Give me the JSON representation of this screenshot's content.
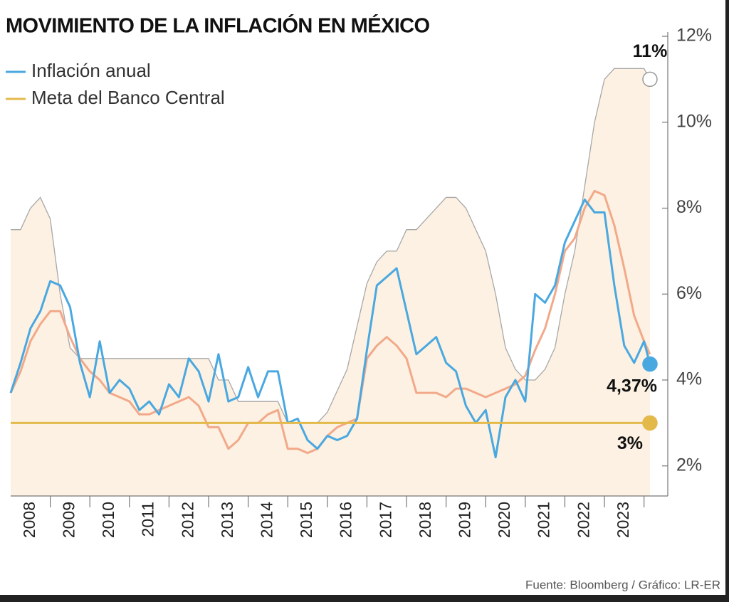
{
  "chart_data": {
    "type": "line",
    "title": "MOVIMIENTO DE LA INFLACIÓN EN MÉXICO",
    "source": "Fuente: Bloomberg / Gráfico: LR-ER",
    "legend": "top-left",
    "x": [
      2008,
      2008.25,
      2008.5,
      2008.75,
      2009,
      2009.25,
      2009.5,
      2009.75,
      2010,
      2010.25,
      2010.5,
      2010.75,
      2011,
      2011.25,
      2011.5,
      2011.75,
      2012,
      2012.25,
      2012.5,
      2012.75,
      2013,
      2013.25,
      2013.5,
      2013.75,
      2014,
      2014.25,
      2014.5,
      2014.75,
      2015,
      2015.25,
      2015.5,
      2015.75,
      2016,
      2016.25,
      2016.5,
      2016.75,
      2017,
      2017.25,
      2017.5,
      2017.75,
      2018,
      2018.25,
      2018.5,
      2018.75,
      2019,
      2019.25,
      2019.5,
      2019.75,
      2020,
      2020.25,
      2020.5,
      2020.75,
      2021,
      2021.25,
      2021.5,
      2021.75,
      2022,
      2022.25,
      2022.5,
      2022.75,
      2023,
      2023.25,
      2023.5,
      2023.75,
      2024,
      2024.15
    ],
    "xlim": [
      2008,
      2024.6
    ],
    "xticks": [
      {
        "value": 2008.5,
        "label": "2008"
      },
      {
        "value": 2009.5,
        "label": "2009"
      },
      {
        "value": 2010.5,
        "label": "2010"
      },
      {
        "value": 2011.5,
        "label": "2011"
      },
      {
        "value": 2012.5,
        "label": "2012"
      },
      {
        "value": 2013.5,
        "label": "2013"
      },
      {
        "value": 2014.5,
        "label": "2014"
      },
      {
        "value": 2015.5,
        "label": "2015"
      },
      {
        "value": 2016.5,
        "label": "2016"
      },
      {
        "value": 2017.5,
        "label": "2017"
      },
      {
        "value": 2018.5,
        "label": "2018"
      },
      {
        "value": 2019.5,
        "label": "2019"
      },
      {
        "value": 2020.5,
        "label": "2020"
      },
      {
        "value": 2021.5,
        "label": "2021"
      },
      {
        "value": 2022.5,
        "label": "2022"
      },
      {
        "value": 2023.5,
        "label": "2023"
      }
    ],
    "ylim": [
      1.3,
      12.1
    ],
    "yticks": [
      {
        "value": 2,
        "label": "2%"
      },
      {
        "value": 4,
        "label": "4%"
      },
      {
        "value": 6,
        "label": "6%"
      },
      {
        "value": 8,
        "label": "8%"
      },
      {
        "value": 10,
        "label": "10%"
      },
      {
        "value": 12,
        "label": "12%"
      }
    ],
    "series": [
      {
        "kind": "area",
        "color": "#fcf1e2",
        "end_label": "11%",
        "values": [
          7.5,
          7.5,
          8.0,
          8.25,
          7.75,
          6.0,
          4.75,
          4.5,
          4.5,
          4.5,
          4.5,
          4.5,
          4.5,
          4.5,
          4.5,
          4.5,
          4.5,
          4.5,
          4.5,
          4.5,
          4.5,
          4.0,
          4.0,
          3.5,
          3.5,
          3.5,
          3.5,
          3.5,
          3.0,
          3.0,
          3.0,
          3.0,
          3.25,
          3.75,
          4.25,
          5.25,
          6.25,
          6.75,
          7.0,
          7.0,
          7.5,
          7.5,
          7.75,
          8.0,
          8.25,
          8.25,
          8.0,
          7.5,
          7.0,
          6.0,
          4.75,
          4.25,
          4.0,
          4.0,
          4.25,
          4.75,
          6.0,
          7.0,
          8.5,
          10.0,
          11.0,
          11.25,
          11.25,
          11.25,
          11.25,
          11.0
        ]
      },
      {
        "kind": "line",
        "color": "#f2a98a",
        "values": [
          3.7,
          4.2,
          4.9,
          5.3,
          5.6,
          5.6,
          5.0,
          4.5,
          4.2,
          4.0,
          3.7,
          3.6,
          3.5,
          3.2,
          3.2,
          3.3,
          3.4,
          3.5,
          3.6,
          3.4,
          2.9,
          2.9,
          2.4,
          2.6,
          3.0,
          3.0,
          3.2,
          3.3,
          2.4,
          2.4,
          2.3,
          2.4,
          2.7,
          2.9,
          3.0,
          3.1,
          4.5,
          4.8,
          5.0,
          4.8,
          4.5,
          3.7,
          3.7,
          3.7,
          3.6,
          3.8,
          3.8,
          3.7,
          3.6,
          3.7,
          3.8,
          3.9,
          4.1,
          4.7,
          5.2,
          6.0,
          7.0,
          7.3,
          8.0,
          8.4,
          8.3,
          7.6,
          6.6,
          5.5,
          4.9,
          4.6
        ]
      },
      {
        "kind": "line",
        "name": "Inflación anual",
        "color": "#4aa8e0",
        "end_label": "4,37%",
        "values": [
          3.7,
          4.4,
          5.2,
          5.6,
          6.3,
          6.2,
          5.7,
          4.4,
          3.6,
          4.9,
          3.7,
          4.0,
          3.8,
          3.3,
          3.5,
          3.2,
          3.9,
          3.6,
          4.5,
          4.2,
          3.5,
          4.6,
          3.5,
          3.6,
          4.3,
          3.6,
          4.2,
          4.2,
          3.0,
          3.1,
          2.6,
          2.4,
          2.7,
          2.6,
          2.7,
          3.1,
          4.7,
          6.2,
          6.4,
          6.6,
          5.6,
          4.6,
          4.8,
          5.0,
          4.4,
          4.2,
          3.4,
          3.0,
          3.3,
          2.2,
          3.6,
          4.0,
          3.5,
          6.0,
          5.8,
          6.2,
          7.2,
          7.7,
          8.2,
          7.9,
          7.9,
          6.2,
          4.8,
          4.4,
          4.9,
          4.37
        ]
      },
      {
        "kind": "line",
        "name": "Meta del Banco Central",
        "color": "#e3b94a",
        "end_label": "3%",
        "values": [
          3,
          3,
          3,
          3,
          3,
          3,
          3,
          3,
          3,
          3,
          3,
          3,
          3,
          3,
          3,
          3,
          3,
          3,
          3,
          3,
          3,
          3,
          3,
          3,
          3,
          3,
          3,
          3,
          3,
          3,
          3,
          3,
          3,
          3,
          3,
          3,
          3,
          3,
          3,
          3,
          3,
          3,
          3,
          3,
          3,
          3,
          3,
          3,
          3,
          3,
          3,
          3,
          3,
          3,
          3,
          3,
          3,
          3,
          3,
          3,
          3,
          3,
          3,
          3,
          3,
          3
        ]
      }
    ]
  }
}
